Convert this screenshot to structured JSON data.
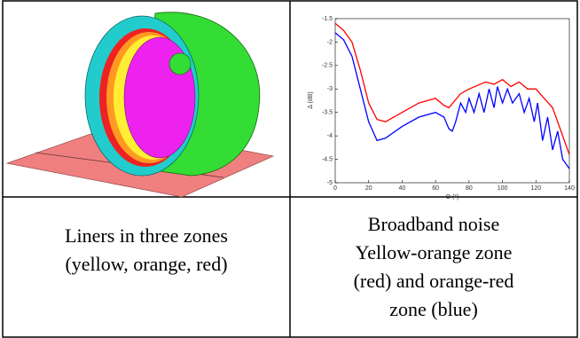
{
  "table": {
    "cells": [
      {
        "caption": [
          "Liners in three zones",
          "(yellow, orange, red)"
        ]
      },
      {
        "caption": [
          "Broadband noise",
          "Yellow-orange zone",
          "(red) and orange-red",
          "zone (blue)"
        ]
      }
    ]
  },
  "chart_data": {
    "type": "line",
    "xlabel": "Θ (°)",
    "ylabel": "Δ (dB)",
    "xlim": [
      0,
      140
    ],
    "ylim": [
      -5,
      -1.5
    ],
    "xticks": [
      0,
      20,
      40,
      60,
      80,
      100,
      120,
      140
    ],
    "yticks": [
      -1.5,
      -2,
      -2.5,
      -3,
      -3.5,
      -4,
      -4.5,
      -5
    ],
    "series": [
      {
        "color": "#ff0000",
        "x": [
          0,
          5,
          10,
          15,
          20,
          25,
          30,
          40,
          50,
          60,
          65,
          68,
          75,
          80,
          90,
          95,
          100,
          105,
          110,
          115,
          120,
          125,
          130,
          135,
          140
        ],
        "values": [
          -1.6,
          -1.75,
          -2.0,
          -2.6,
          -3.3,
          -3.65,
          -3.7,
          -3.5,
          -3.3,
          -3.2,
          -3.35,
          -3.4,
          -3.1,
          -3.0,
          -2.85,
          -2.9,
          -2.8,
          -2.95,
          -2.85,
          -3.0,
          -3.0,
          -3.2,
          -3.4,
          -3.9,
          -4.4
        ]
      },
      {
        "color": "#0000ff",
        "x": [
          0,
          5,
          10,
          15,
          20,
          25,
          30,
          40,
          50,
          60,
          65,
          68,
          70,
          72,
          75,
          78,
          80,
          83,
          86,
          89,
          92,
          95,
          97,
          100,
          103,
          106,
          110,
          113,
          116,
          119,
          121,
          124,
          127,
          130,
          133,
          136,
          140
        ],
        "values": [
          -1.8,
          -1.95,
          -2.3,
          -3.0,
          -3.7,
          -4.1,
          -4.05,
          -3.8,
          -3.6,
          -3.5,
          -3.6,
          -3.85,
          -3.9,
          -3.7,
          -3.3,
          -3.5,
          -3.2,
          -3.5,
          -3.1,
          -3.5,
          -3.0,
          -3.4,
          -2.95,
          -3.3,
          -3.0,
          -3.3,
          -3.1,
          -3.5,
          -3.2,
          -3.7,
          -3.3,
          -4.1,
          -3.6,
          -4.3,
          -3.9,
          -4.5,
          -4.7
        ]
      }
    ]
  }
}
